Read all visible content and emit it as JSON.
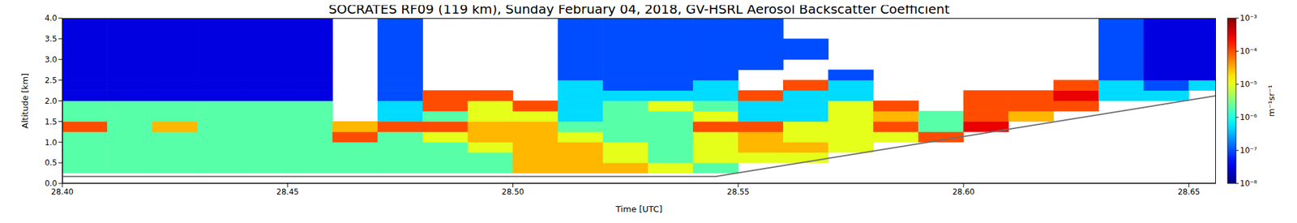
{
  "chart_data": {
    "type": "heatmap",
    "title": "SOCRATES RF09 (119 km), Sunday February 04, 2018, GV-HSRL Aerosol Backscatter Coefficient",
    "x_label": "Time [UTC]",
    "y_label": "Altitude [km]",
    "grid": false,
    "xlim": [
      28.4,
      28.656
    ],
    "xticks": [
      {
        "value": 28.4,
        "label": "28.40"
      },
      28.45,
      {
        "value": 28.5,
        "label": "28.50"
      },
      28.55,
      {
        "value": 28.6,
        "label": "28.60"
      },
      28.65
    ],
    "ylim": [
      0,
      4
    ],
    "yticks": [
      {
        "value": 0,
        "label": "0.0"
      },
      0.5,
      {
        "value": 1,
        "label": "1.0"
      },
      1.5,
      {
        "value": 2,
        "label": "2.0"
      },
      2.5,
      {
        "value": 3,
        "label": "3.0"
      },
      3.5,
      {
        "value": 4,
        "label": "4.0"
      }
    ],
    "x": [
      28.405,
      28.415,
      28.425,
      28.435,
      28.445,
      28.455,
      28.465,
      28.475,
      28.485,
      28.495,
      28.505,
      28.515,
      28.525,
      28.535,
      28.545,
      28.555,
      28.565,
      28.575,
      28.585,
      28.595,
      28.605,
      28.615,
      28.625,
      28.635,
      28.645,
      28.655
    ],
    "y": [
      0.125,
      0.375,
      0.625,
      0.875,
      1.125,
      1.375,
      1.625,
      1.875,
      2.125,
      2.375,
      2.625,
      2.875,
      3.125,
      3.375,
      3.625,
      3.875
    ],
    "values": [
      [
        null,
        null,
        null,
        null,
        null,
        null,
        null,
        null,
        null,
        null,
        null,
        null,
        null,
        null,
        null,
        null,
        null,
        null,
        null,
        null,
        null,
        null,
        null,
        null,
        null,
        null
      ],
      [
        2e-06,
        2e-06,
        2e-06,
        2e-06,
        2e-06,
        2e-06,
        2e-06,
        2e-06,
        2e-06,
        2e-06,
        3e-05,
        3e-05,
        3e-05,
        1e-05,
        2e-06,
        null,
        null,
        null,
        null,
        null,
        null,
        null,
        null,
        null,
        null,
        null
      ],
      [
        2e-06,
        2e-06,
        2e-06,
        2e-06,
        2e-06,
        2e-06,
        2e-06,
        2e-06,
        2e-06,
        2e-06,
        3e-05,
        3e-05,
        1e-05,
        2e-06,
        1e-05,
        1e-05,
        1e-05,
        null,
        null,
        null,
        null,
        null,
        null,
        null,
        null,
        null
      ],
      [
        2e-06,
        2e-06,
        2e-06,
        2e-06,
        2e-06,
        2e-06,
        2e-06,
        2e-06,
        2e-06,
        1e-05,
        3e-05,
        3e-05,
        1e-05,
        2e-06,
        1e-05,
        3e-05,
        3e-05,
        1e-05,
        null,
        null,
        null,
        null,
        null,
        null,
        null,
        null
      ],
      [
        2e-06,
        2e-06,
        2e-06,
        2e-06,
        2e-06,
        2e-06,
        0.0001,
        2e-06,
        1e-05,
        3e-05,
        3e-05,
        1e-05,
        2e-06,
        2e-06,
        1e-05,
        3e-05,
        1e-05,
        1e-05,
        1e-05,
        0.0001,
        null,
        null,
        null,
        null,
        null,
        null
      ],
      [
        0.0001,
        2e-06,
        3e-05,
        2e-06,
        2e-06,
        2e-06,
        3e-05,
        0.0001,
        0.0001,
        3e-05,
        3e-05,
        2e-06,
        2e-06,
        2e-06,
        0.0001,
        0.0001,
        1e-05,
        1e-05,
        0.0001,
        2e-06,
        0.0003,
        null,
        null,
        null,
        null,
        null
      ],
      [
        2e-06,
        2e-06,
        2e-06,
        2e-06,
        2e-06,
        2e-06,
        null,
        5e-07,
        2e-06,
        1e-05,
        1e-05,
        5e-07,
        2e-06,
        2e-06,
        1e-05,
        5e-07,
        5e-07,
        1e-05,
        3e-05,
        2e-06,
        0.0001,
        3e-05,
        null,
        null,
        null,
        null
      ],
      [
        2e-06,
        2e-06,
        2e-06,
        2e-06,
        2e-06,
        2e-06,
        null,
        5e-07,
        0.0001,
        1e-05,
        0.0001,
        5e-07,
        2e-06,
        1e-05,
        2e-06,
        5e-07,
        5e-07,
        1e-05,
        0.0001,
        null,
        0.0001,
        0.0001,
        0.0001,
        null,
        null,
        null
      ],
      [
        3e-08,
        3e-08,
        3e-08,
        3e-08,
        3e-08,
        3e-08,
        null,
        1e-07,
        0.0001,
        0.0001,
        null,
        5e-07,
        5e-07,
        5e-07,
        5e-07,
        0.0001,
        5e-07,
        5e-07,
        null,
        null,
        0.0001,
        0.0001,
        0.0003,
        5e-07,
        5e-07,
        null
      ],
      [
        3e-08,
        3e-08,
        3e-08,
        3e-08,
        3e-08,
        3e-08,
        null,
        1e-07,
        null,
        null,
        null,
        5e-07,
        1e-07,
        1e-07,
        5e-07,
        null,
        0.0001,
        5e-07,
        null,
        null,
        null,
        null,
        0.0001,
        5e-07,
        1e-07,
        5e-07
      ],
      [
        3e-08,
        3e-08,
        3e-08,
        3e-08,
        3e-08,
        3e-08,
        null,
        1e-07,
        null,
        null,
        null,
        1e-07,
        1e-07,
        1e-07,
        1e-07,
        null,
        null,
        1e-07,
        null,
        null,
        null,
        null,
        null,
        1e-07,
        3e-08,
        3e-08
      ],
      [
        3e-08,
        3e-08,
        3e-08,
        3e-08,
        3e-08,
        3e-08,
        null,
        1e-07,
        null,
        null,
        null,
        1e-07,
        1e-07,
        1e-07,
        1e-07,
        1e-07,
        null,
        null,
        null,
        null,
        null,
        null,
        null,
        1e-07,
        3e-08,
        3e-08
      ],
      [
        3e-08,
        3e-08,
        3e-08,
        3e-08,
        3e-08,
        3e-08,
        null,
        1e-07,
        null,
        null,
        null,
        1e-07,
        1e-07,
        1e-07,
        1e-07,
        1e-07,
        1e-07,
        null,
        null,
        null,
        null,
        null,
        null,
        1e-07,
        3e-08,
        3e-08
      ],
      [
        3e-08,
        3e-08,
        3e-08,
        3e-08,
        3e-08,
        3e-08,
        null,
        1e-07,
        null,
        null,
        null,
        1e-07,
        1e-07,
        1e-07,
        1e-07,
        1e-07,
        1e-07,
        null,
        null,
        null,
        null,
        null,
        null,
        1e-07,
        3e-08,
        3e-08
      ],
      [
        3e-08,
        3e-08,
        3e-08,
        3e-08,
        3e-08,
        3e-08,
        null,
        1e-07,
        null,
        null,
        null,
        1e-07,
        1e-07,
        1e-07,
        1e-07,
        1e-07,
        null,
        null,
        null,
        null,
        null,
        null,
        null,
        1e-07,
        3e-08,
        3e-08
      ],
      [
        3e-08,
        3e-08,
        3e-08,
        3e-08,
        3e-08,
        3e-08,
        null,
        1e-07,
        null,
        null,
        null,
        1e-07,
        1e-07,
        1e-07,
        1e-07,
        1e-07,
        null,
        null,
        null,
        null,
        null,
        null,
        null,
        1e-07,
        3e-08,
        3e-08
      ]
    ],
    "colorbar": {
      "label": "m⁻¹sr⁻¹",
      "log": true,
      "color": "jet",
      "range": [
        1e-08,
        0.001
      ],
      "ticks": [
        {
          "value": 1e-08,
          "label": "10⁻⁸"
        },
        {
          "value": 1e-07,
          "label": "10⁻⁷"
        },
        {
          "value": 1e-06,
          "label": "10⁻⁶"
        },
        {
          "value": 1e-05,
          "label": "10⁻⁵"
        },
        {
          "value": 0.0001,
          "label": "10⁻⁴"
        },
        {
          "value": 0.001,
          "label": "10⁻³"
        }
      ]
    },
    "line": {
      "x": [
        28.4,
        28.545,
        28.656
      ],
      "y": [
        0.17,
        0.17,
        2.12
      ],
      "color": "#707070"
    }
  }
}
